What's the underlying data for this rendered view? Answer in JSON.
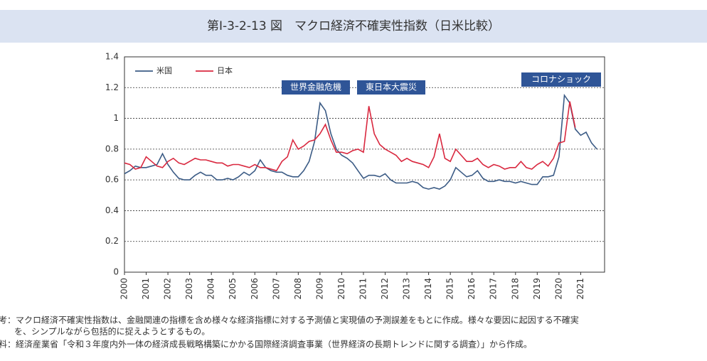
{
  "chart_data": {
    "type": "line",
    "title": "第Ⅰ-3-2-13 図　マクロ経済不確実性指数（日米比較）",
    "annotations": [
      "世界金融危機",
      "東日本大震災",
      "コロナショック"
    ],
    "notes": [
      "考：マクロ経済不確実性指数は、金融関連の指標を含め様々な経済指標に対する予測値と実現値の予測誤差をもとに作成。様々な要因に起因する不確実",
      "を、シンプルながら包括的に捉えようとするもの。",
      "料：経済産業省「令和３年度内外一体の経済成長戦略構築にかかる国際経済調査事業（世界経済の長期トレンドに関する調査）」から作成。"
    ],
    "x": [
      2000,
      2000.25,
      2000.5,
      2000.75,
      2001,
      2001.25,
      2001.5,
      2001.75,
      2002,
      2002.25,
      2002.5,
      2002.75,
      2003,
      2003.25,
      2003.5,
      2003.75,
      2004,
      2004.25,
      2004.5,
      2004.75,
      2005,
      2005.25,
      2005.5,
      2005.75,
      2006,
      2006.25,
      2006.5,
      2006.75,
      2007,
      2007.25,
      2007.5,
      2007.75,
      2008,
      2008.25,
      2008.5,
      2008.75,
      2009,
      2009.25,
      2009.5,
      2009.75,
      2010,
      2010.25,
      2010.5,
      2010.75,
      2011,
      2011.25,
      2011.5,
      2011.75,
      2012,
      2012.25,
      2012.5,
      2012.75,
      2013,
      2013.25,
      2013.5,
      2013.75,
      2014,
      2014.25,
      2014.5,
      2014.75,
      2015,
      2015.25,
      2015.5,
      2015.75,
      2016,
      2016.25,
      2016.5,
      2016.75,
      2017,
      2017.25,
      2017.5,
      2017.75,
      2018,
      2018.25,
      2018.5,
      2018.75,
      2019,
      2019.25,
      2019.5,
      2019.75,
      2020,
      2020.25,
      2020.5,
      2020.75,
      2021,
      2021.25,
      2021.5,
      2021.75
    ],
    "series": [
      {
        "name": "米国",
        "color": "#3b5b85",
        "values": [
          0.64,
          0.66,
          0.69,
          0.68,
          0.68,
          0.69,
          0.7,
          0.77,
          0.7,
          0.65,
          0.61,
          0.6,
          0.6,
          0.63,
          0.65,
          0.63,
          0.63,
          0.6,
          0.6,
          0.61,
          0.6,
          0.62,
          0.65,
          0.63,
          0.66,
          0.73,
          0.68,
          0.66,
          0.65,
          0.65,
          0.63,
          0.62,
          0.62,
          0.66,
          0.72,
          0.85,
          1.1,
          1.05,
          0.9,
          0.8,
          0.76,
          0.74,
          0.71,
          0.66,
          0.61,
          0.63,
          0.63,
          0.62,
          0.64,
          0.6,
          0.58,
          0.58,
          0.58,
          0.59,
          0.58,
          0.55,
          0.54,
          0.55,
          0.54,
          0.56,
          0.6,
          0.68,
          0.65,
          0.62,
          0.63,
          0.66,
          0.61,
          0.59,
          0.59,
          0.6,
          0.59,
          0.59,
          0.58,
          0.59,
          0.58,
          0.57,
          0.57,
          0.62,
          0.62,
          0.63,
          0.75,
          1.15,
          1.1,
          0.93,
          0.89,
          0.91,
          0.84,
          0.8
        ]
      },
      {
        "name": "日本",
        "color": "#d9283f",
        "values": [
          0.71,
          0.7,
          0.67,
          0.68,
          0.75,
          0.72,
          0.69,
          0.68,
          0.72,
          0.74,
          0.71,
          0.7,
          0.72,
          0.74,
          0.73,
          0.73,
          0.72,
          0.71,
          0.71,
          0.69,
          0.7,
          0.7,
          0.69,
          0.68,
          0.7,
          0.68,
          0.68,
          0.67,
          0.66,
          0.72,
          0.75,
          0.86,
          0.8,
          0.82,
          0.85,
          0.86,
          0.9,
          0.96,
          0.86,
          0.78,
          0.78,
          0.77,
          0.79,
          0.8,
          0.78,
          1.08,
          0.9,
          0.83,
          0.8,
          0.78,
          0.76,
          0.72,
          0.74,
          0.72,
          0.71,
          0.7,
          0.68,
          0.75,
          0.9,
          0.74,
          0.72,
          0.8,
          0.76,
          0.72,
          0.72,
          0.74,
          0.7,
          0.68,
          0.7,
          0.69,
          0.67,
          0.68,
          0.68,
          0.72,
          0.68,
          0.67,
          0.7,
          0.72,
          0.69,
          0.74,
          0.84,
          0.85,
          1.11,
          0.94,
          null,
          null,
          null,
          null
        ]
      }
    ],
    "xlim": [
      2000,
      2022.1
    ],
    "xticks": [
      2000,
      2001,
      2002,
      2003,
      2004,
      2005,
      2006,
      2007,
      2008,
      2009,
      2010,
      2011,
      2012,
      2013,
      2014,
      2015,
      2016,
      2017,
      2018,
      2019,
      2020,
      2021
    ],
    "ylim": [
      0,
      1.4
    ],
    "yticks": [
      0,
      0.2,
      0.4,
      0.6,
      0.8,
      1,
      1.2,
      1.4
    ],
    "grid": true
  }
}
